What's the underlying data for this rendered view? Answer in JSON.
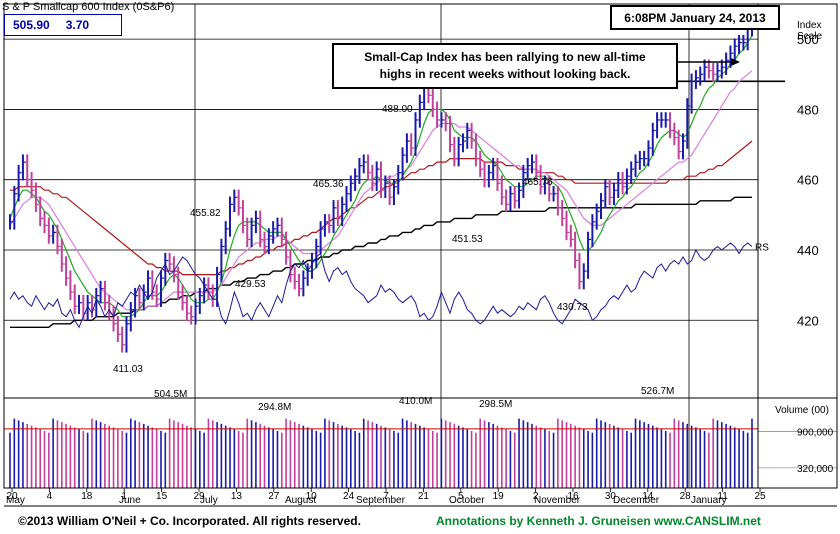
{
  "header": {
    "title": "S & P Smallcap 600 Index",
    "symbol": "(0S&P6)",
    "last_price": "505.90",
    "change": "3.70",
    "timestamp": "6:08PM January 24, 2013"
  },
  "annotation": {
    "line1": "Small-Cap Index has been rallying to new all-time",
    "line2": "highs in recent weeks without looking back."
  },
  "footer": {
    "copyright": "©2013 William O'Neil + Co. Incorporated. All rights reserved.",
    "credit": "Annotations by Kenneth J. Gruneisen www.CANSLIM.net"
  },
  "colors": {
    "up_bar": "#1a1aa8",
    "down_bar": "#c0409a",
    "ma_short": "#22aa22",
    "ma_mid": "#d97fe0",
    "ma_50": "#b01818",
    "ma_200": "#000000",
    "rs_line": "#1a1a9a",
    "volume_avg": "#cc0000"
  },
  "chart_data": {
    "type": "ohlc",
    "price_axis": {
      "title_line1": "Index",
      "title_line2": "Scale",
      "ticks": [
        420,
        440,
        460,
        480,
        500
      ],
      "ylim": [
        403,
        510
      ]
    },
    "volume_axis": {
      "title": "Volume (00)",
      "ticks": [
        {
          "label": "900,000",
          "value": 900000
        },
        {
          "label": "320,000",
          "value": 320000
        }
      ],
      "ylim": [
        0,
        1400000
      ]
    },
    "date_ticks": [
      "20",
      "4",
      "18",
      "1",
      "15",
      "29",
      "13",
      "27",
      "10",
      "24",
      "7",
      "21",
      "5",
      "19",
      "2",
      "16",
      "30",
      "14",
      "28",
      "11",
      "25"
    ],
    "month_labels": [
      "May",
      "June",
      "July",
      "August",
      "September",
      "October",
      "November",
      "December",
      "January"
    ],
    "price_annotations": [
      "411.03",
      "455.82",
      "429.53",
      "465.36",
      "488.00",
      "451.53",
      "465.76",
      "430.73"
    ],
    "volume_annotations": [
      "504.5M",
      "294.8M",
      "410.0M",
      "298.5M",
      "526.7M"
    ],
    "rs_label": "RS",
    "close_series": [
      448,
      456,
      462,
      465,
      460,
      457,
      453,
      449,
      447,
      444,
      445,
      441,
      436,
      432,
      428,
      424,
      425,
      422,
      425,
      423,
      427,
      429,
      425,
      422,
      419,
      416,
      413,
      419,
      423,
      427,
      425,
      428,
      432,
      428,
      426,
      432,
      437,
      436,
      433,
      428,
      425,
      422,
      421,
      424,
      427,
      430,
      428,
      426,
      433,
      441,
      446,
      453,
      455,
      452,
      447,
      443,
      447,
      449,
      443,
      441,
      444,
      446,
      447,
      443,
      438,
      433,
      431,
      429,
      432,
      434,
      437,
      441,
      446,
      448,
      447,
      452,
      449,
      453,
      456,
      459,
      461,
      464,
      465,
      462,
      459,
      463,
      457,
      459,
      455,
      458,
      462,
      467,
      471,
      469,
      477,
      482,
      486,
      484,
      480,
      477,
      477,
      476,
      470,
      466,
      470,
      471,
      474,
      471,
      466,
      463,
      460,
      462,
      464,
      459,
      455,
      453,
      456,
      454,
      457,
      462,
      464,
      465,
      462,
      458,
      459,
      456,
      456,
      452,
      449,
      445,
      443,
      437,
      431,
      434,
      443,
      448,
      451,
      454,
      458,
      455,
      457,
      460,
      458,
      461,
      463,
      465,
      466,
      466,
      469,
      474,
      477,
      477,
      477,
      474,
      472,
      468,
      471,
      481,
      488,
      489,
      490,
      492,
      491,
      490,
      491,
      492,
      494,
      496,
      498,
      499,
      499,
      503,
      506
    ],
    "ma_short": [
      449,
      452,
      455,
      457,
      457,
      456,
      455,
      453,
      451,
      450,
      448,
      446,
      443,
      440,
      437,
      434,
      432,
      430,
      428,
      427,
      426,
      425,
      425,
      425,
      424,
      423,
      421,
      421,
      421,
      422,
      423,
      425,
      427,
      427,
      427,
      428,
      430,
      432,
      433,
      432,
      430,
      428,
      426,
      425,
      425,
      425,
      426,
      426,
      428,
      431,
      435,
      440,
      444,
      447,
      448,
      448,
      448,
      448,
      447,
      446,
      445,
      445,
      445,
      445,
      443,
      441,
      439,
      437,
      435,
      434,
      434,
      435,
      437,
      439,
      441,
      444,
      446,
      448,
      450,
      452,
      454,
      457,
      459,
      460,
      460,
      461,
      460,
      460,
      459,
      459,
      459,
      461,
      463,
      465,
      468,
      472,
      476,
      479,
      480,
      480,
      480,
      479,
      477,
      474,
      473,
      472,
      472,
      472,
      471,
      469,
      467,
      466,
      465,
      464,
      462,
      460,
      459,
      458,
      458,
      458,
      459,
      460,
      461,
      461,
      461,
      460,
      459,
      458,
      456,
      453,
      450,
      447,
      443,
      440,
      440,
      441,
      443,
      445,
      448,
      450,
      452,
      454,
      455,
      457,
      458,
      460,
      462,
      463,
      465,
      467,
      470,
      472,
      473,
      474,
      474,
      473,
      472,
      473,
      476,
      479,
      481,
      484,
      486,
      487,
      489,
      490,
      491,
      493,
      494,
      496,
      497,
      499,
      501
    ],
    "ma_mid": [
      447,
      449,
      451,
      453,
      454,
      455,
      455,
      455,
      454,
      453,
      451,
      449,
      447,
      445,
      443,
      441,
      439,
      437,
      435,
      433,
      431,
      429,
      428,
      427,
      426,
      425,
      424,
      423,
      423,
      423,
      423,
      423,
      424,
      424,
      424,
      425,
      426,
      427,
      428,
      428,
      428,
      428,
      428,
      428,
      428,
      428,
      428,
      428,
      429,
      430,
      432,
      434,
      436,
      438,
      439,
      440,
      441,
      442,
      442,
      443,
      443,
      443,
      444,
      444,
      443,
      442,
      441,
      440,
      439,
      439,
      439,
      439,
      440,
      441,
      442,
      443,
      444,
      446,
      448,
      450,
      452,
      454,
      456,
      457,
      458,
      459,
      460,
      460,
      461,
      461,
      462,
      462,
      463,
      464,
      466,
      468,
      470,
      472,
      474,
      475,
      476,
      476,
      476,
      476,
      475,
      475,
      475,
      474,
      473,
      472,
      471,
      470,
      469,
      468,
      467,
      466,
      465,
      464,
      464,
      463,
      463,
      463,
      463,
      462,
      462,
      461,
      460,
      459,
      458,
      457,
      455,
      453,
      451,
      449,
      448,
      447,
      447,
      447,
      448,
      449,
      450,
      451,
      452,
      453,
      454,
      455,
      456,
      457,
      458,
      459,
      460,
      461,
      462,
      463,
      464,
      465,
      465,
      466,
      467,
      469,
      471,
      473,
      475,
      477,
      479,
      481,
      483,
      485,
      486,
      488,
      489,
      490,
      491
    ],
    "ma_50": [
      457,
      457,
      458,
      458,
      458,
      458,
      458,
      458,
      457,
      457,
      456,
      456,
      455,
      455,
      454,
      453,
      452,
      451,
      450,
      449,
      448,
      447,
      446,
      445,
      444,
      443,
      442,
      441,
      440,
      439,
      438,
      437,
      436,
      436,
      435,
      435,
      434,
      434,
      434,
      434,
      433,
      433,
      433,
      433,
      433,
      433,
      433,
      433,
      433,
      434,
      434,
      435,
      435,
      436,
      436,
      437,
      437,
      438,
      438,
      439,
      440,
      440,
      441,
      441,
      442,
      442,
      443,
      443,
      444,
      444,
      445,
      445,
      446,
      447,
      448,
      449,
      449,
      450,
      451,
      452,
      452,
      453,
      454,
      455,
      455,
      456,
      457,
      458,
      458,
      459,
      460,
      460,
      461,
      462,
      462,
      463,
      463,
      464,
      464,
      465,
      465,
      465,
      466,
      466,
      466,
      466,
      466,
      466,
      466,
      466,
      465,
      465,
      465,
      465,
      465,
      464,
      464,
      464,
      463,
      463,
      463,
      463,
      463,
      462,
      462,
      462,
      462,
      461,
      461,
      460,
      460,
      459,
      459,
      459,
      459,
      459,
      459,
      459,
      459,
      459,
      459,
      459,
      459,
      459,
      459,
      459,
      459,
      459,
      459,
      459,
      459,
      459,
      459,
      460,
      460,
      460,
      460,
      461,
      461,
      461,
      462,
      462,
      463,
      463,
      464,
      464,
      465,
      466,
      467,
      468,
      469,
      470,
      471
    ],
    "ma_200": [
      418,
      418,
      418,
      418,
      418,
      418,
      418,
      418,
      418,
      418,
      419,
      419,
      419,
      419,
      419,
      420,
      420,
      420,
      420,
      420,
      421,
      421,
      421,
      421,
      421,
      422,
      422,
      422,
      422,
      423,
      423,
      423,
      424,
      424,
      424,
      425,
      425,
      426,
      426,
      426,
      427,
      427,
      427,
      428,
      428,
      428,
      429,
      429,
      429,
      430,
      430,
      430,
      431,
      431,
      431,
      432,
      432,
      432,
      433,
      433,
      433,
      434,
      434,
      434,
      435,
      435,
      436,
      436,
      436,
      437,
      437,
      437,
      438,
      438,
      438,
      439,
      439,
      440,
      440,
      440,
      441,
      441,
      441,
      442,
      442,
      442,
      443,
      443,
      444,
      444,
      444,
      445,
      445,
      445,
      446,
      446,
      447,
      447,
      447,
      448,
      448,
      448,
      448,
      449,
      449,
      449,
      449,
      449,
      450,
      450,
      450,
      450,
      450,
      450,
      451,
      451,
      451,
      451,
      451,
      451,
      451,
      451,
      451,
      451,
      451,
      452,
      452,
      452,
      452,
      452,
      452,
      452,
      452,
      452,
      452,
      452,
      452,
      452,
      452,
      452,
      452,
      452,
      452,
      452,
      452,
      453,
      453,
      453,
      453,
      453,
      453,
      453,
      453,
      453,
      453,
      453,
      453,
      453,
      453,
      453,
      454,
      454,
      454,
      454,
      454,
      454,
      454,
      454,
      455,
      455,
      455,
      455,
      455
    ],
    "rs_line": [
      426,
      428,
      426,
      427,
      425,
      424,
      427,
      425,
      423,
      425,
      424,
      426,
      422,
      421,
      423,
      420,
      418,
      421,
      424,
      422,
      426,
      424,
      421,
      423,
      421,
      425,
      424,
      426,
      428,
      427,
      430,
      428,
      426,
      428,
      432,
      434,
      436,
      433,
      434,
      436,
      438,
      437,
      435,
      433,
      432,
      430,
      428,
      426,
      426,
      421,
      419,
      423,
      428,
      425,
      421,
      422,
      420,
      423,
      425,
      423,
      421,
      424,
      427,
      425,
      430,
      434,
      436,
      435,
      437,
      434,
      436,
      438,
      439,
      434,
      431,
      434,
      435,
      433,
      434,
      431,
      429,
      428,
      427,
      425,
      426,
      427,
      430,
      428,
      429,
      428,
      426,
      425,
      426,
      427,
      425,
      421,
      422,
      420,
      421,
      424,
      428,
      425,
      422,
      426,
      428,
      426,
      423,
      422,
      420,
      419,
      420,
      422,
      424,
      422,
      423,
      422,
      421,
      422,
      424,
      423,
      425,
      424,
      423,
      426,
      427,
      425,
      422,
      420,
      419,
      421,
      423,
      426,
      425,
      424,
      423,
      420,
      421,
      423,
      424,
      426,
      427,
      426,
      428,
      430,
      428,
      429,
      432,
      434,
      433,
      432,
      435,
      436,
      434,
      436,
      437,
      436,
      438,
      436,
      437,
      440,
      438,
      437,
      438,
      440,
      441,
      440,
      441,
      442,
      441,
      439,
      441,
      442,
      441
    ]
  }
}
